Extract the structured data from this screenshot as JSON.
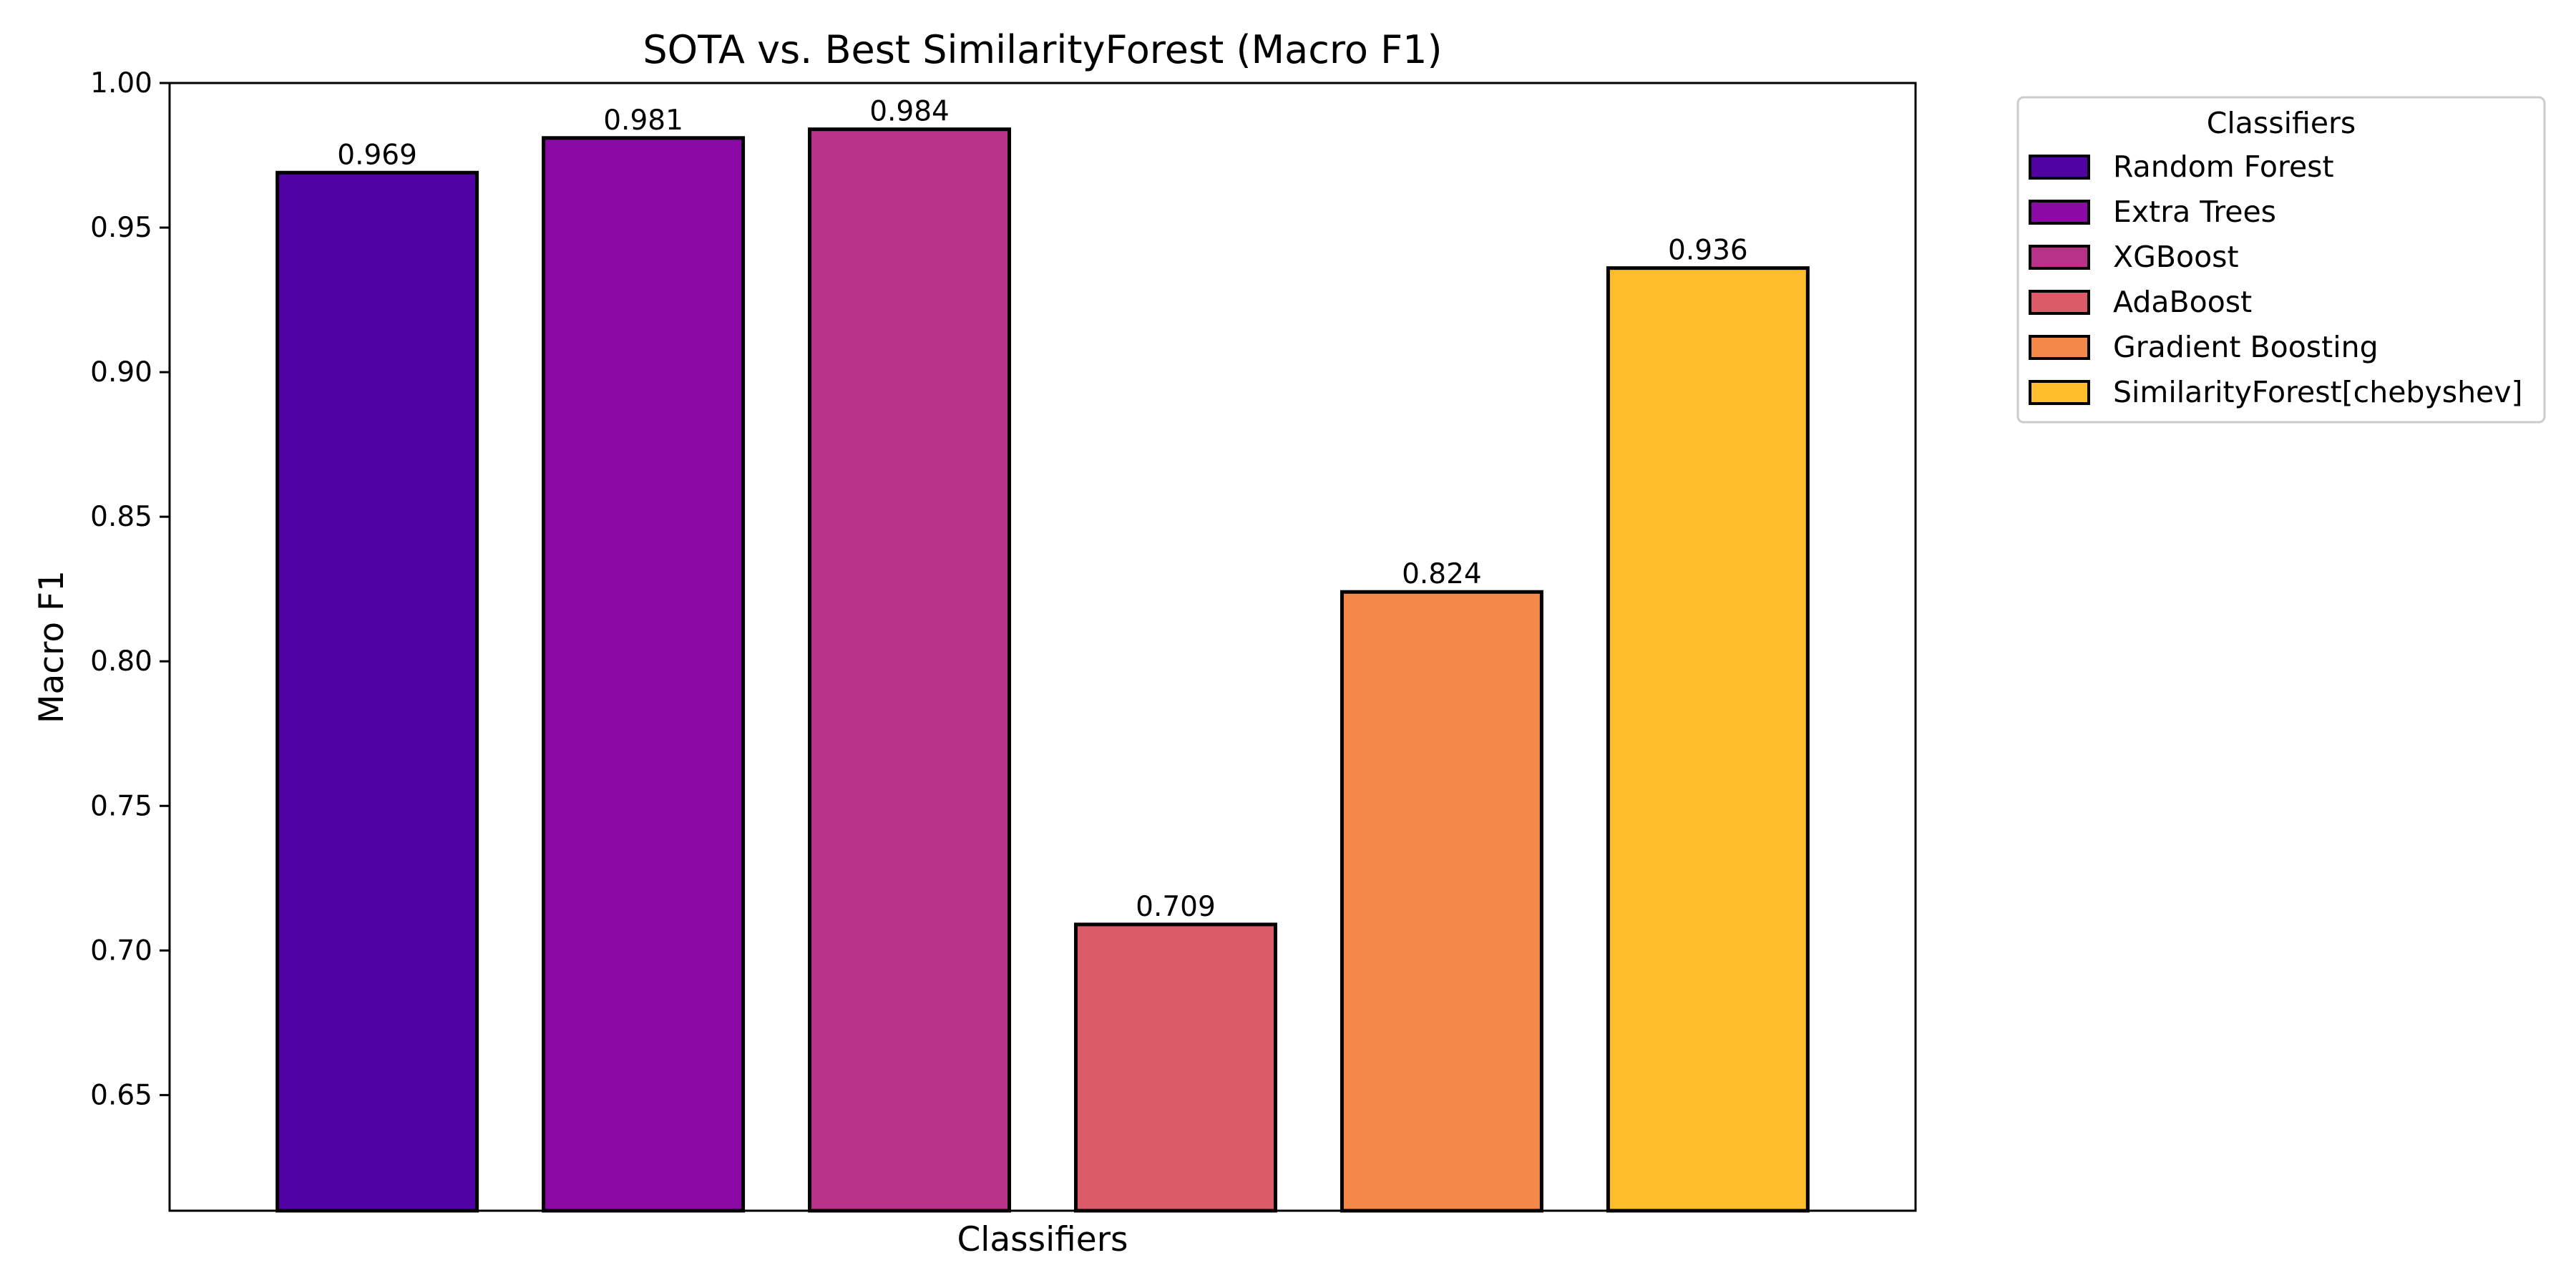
{
  "chart_data": {
    "type": "bar",
    "title": "SOTA vs. Best SimilarityForest (Macro F1)",
    "xlabel": "Classifiers",
    "ylabel": "Macro F1",
    "ylim": [
      0.61,
      1.0
    ],
    "yticks": [
      "0.65",
      "0.70",
      "0.75",
      "0.80",
      "0.85",
      "0.90",
      "0.95",
      "1.00"
    ],
    "grid": false,
    "legend": {
      "title": "Classifiers",
      "placement": "outside-top-right"
    },
    "bars": [
      {
        "name": "Random Forest",
        "value": 0.969,
        "label": "0.969",
        "color": "#5002a2"
      },
      {
        "name": "Extra Trees",
        "value": 0.981,
        "label": "0.981",
        "color": "#8b0aa5"
      },
      {
        "name": "XGBoost",
        "value": 0.984,
        "label": "0.984",
        "color": "#b83289"
      },
      {
        "name": "AdaBoost",
        "value": 0.709,
        "label": "0.709",
        "color": "#db5c68"
      },
      {
        "name": "Gradient Boosting",
        "value": 0.824,
        "label": "0.824",
        "color": "#f48849"
      },
      {
        "name": "SimilarityForest[chebyshev]",
        "value": 0.936,
        "label": "0.936",
        "color": "#febd2a"
      }
    ]
  }
}
